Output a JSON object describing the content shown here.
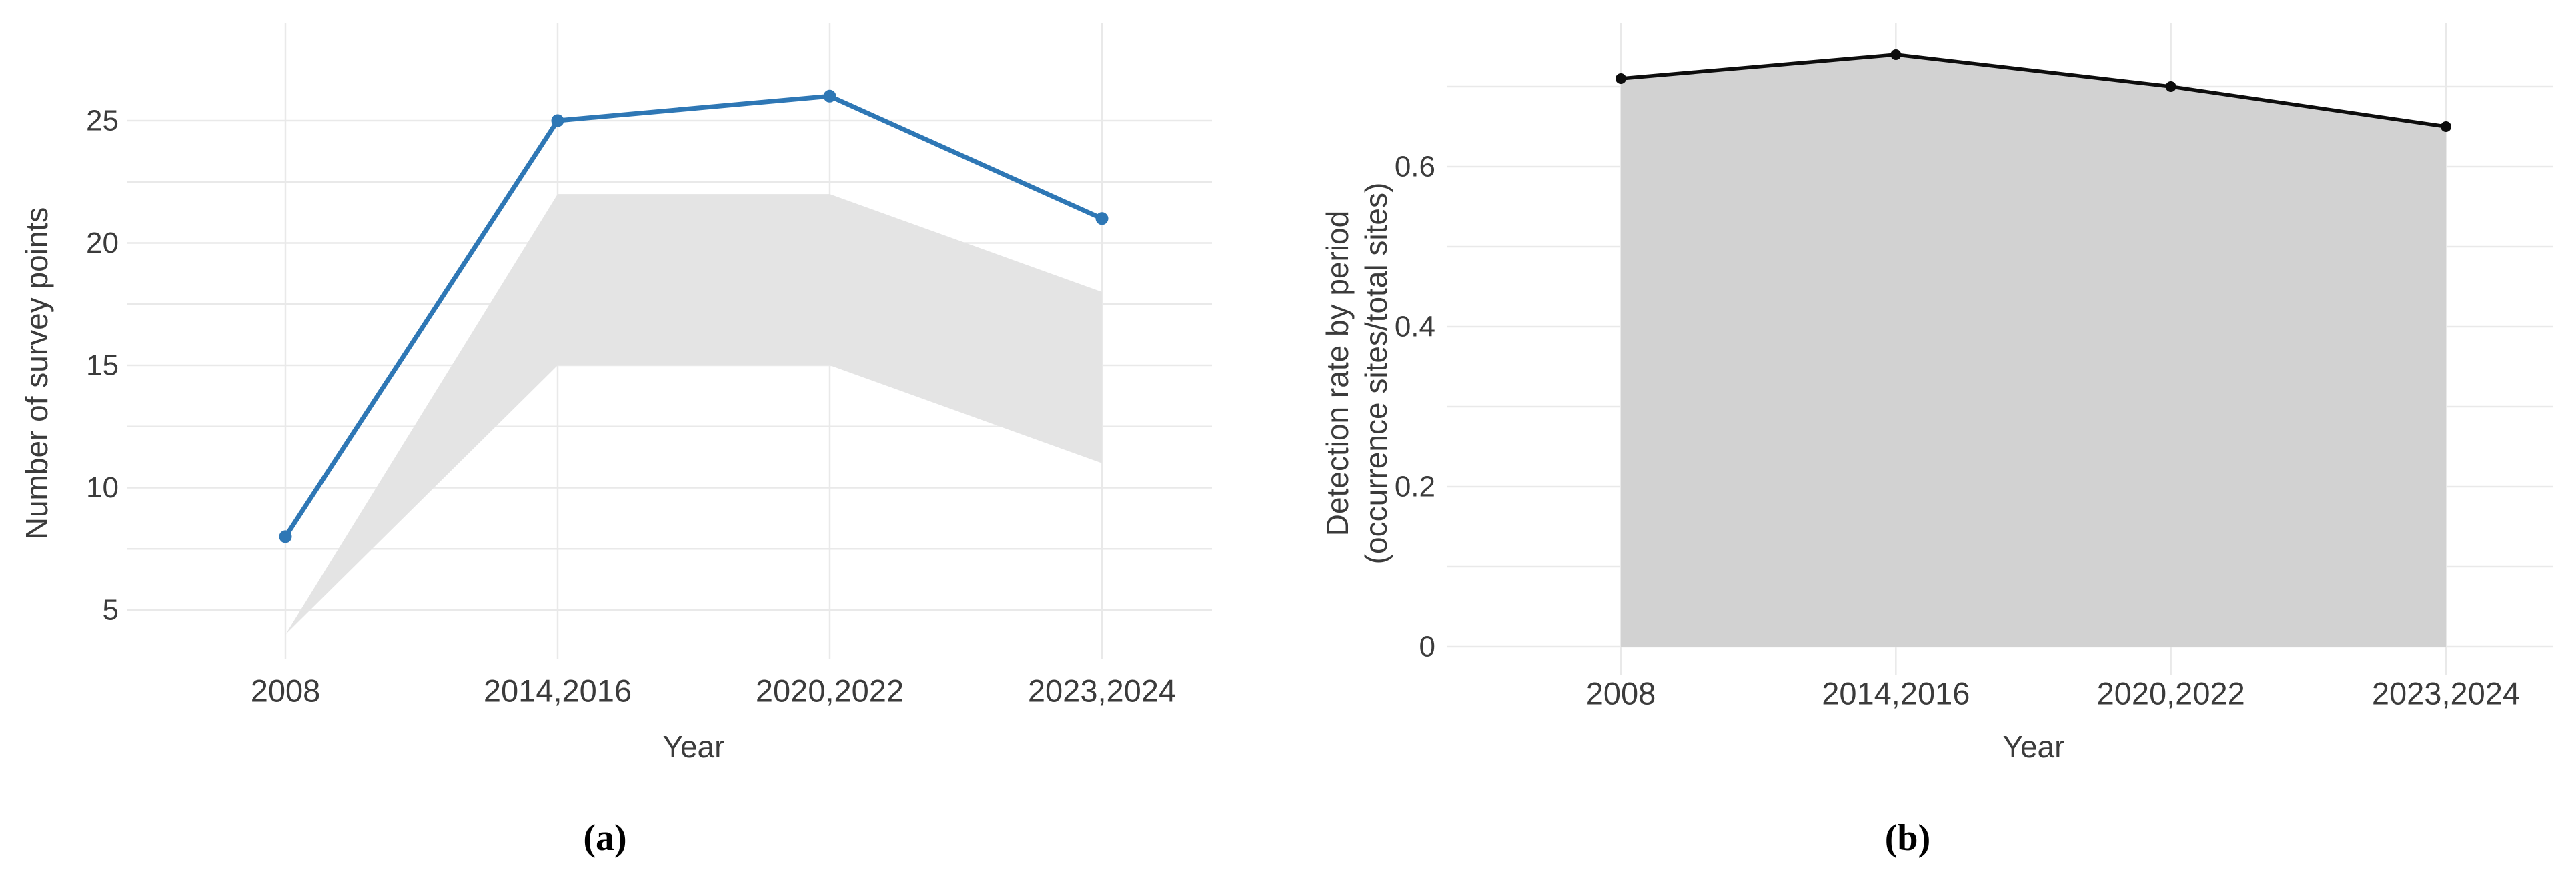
{
  "figure": {
    "caption_a": "(a)",
    "caption_b": "(b)"
  },
  "chart_data": [
    {
      "id": "a",
      "type": "line",
      "panel_label": "(a)",
      "title": "",
      "categories": [
        "2008",
        "2014,2016",
        "2020,2022",
        "2023,2024"
      ],
      "xlabel": "Year",
      "ylabel": "Number of survey points",
      "series": [
        {
          "name": "number of survey points",
          "type": "line_markers",
          "color": "#2e77b5",
          "values": [
            8,
            25,
            26,
            21
          ]
        },
        {
          "name": "range band",
          "type": "band",
          "color": "#e4e4e4",
          "lower": [
            4,
            15,
            15,
            11
          ],
          "upper": [
            4,
            22,
            22,
            18
          ]
        }
      ],
      "ytick_labels": [
        "5",
        "10",
        "15",
        "20",
        "25"
      ],
      "ytick_values": [
        5,
        10,
        15,
        20,
        25
      ],
      "gridline_values": [
        5,
        7.5,
        10,
        12.5,
        15,
        17.5,
        20,
        22.5,
        25
      ],
      "ylim": [
        2.8,
        29
      ],
      "grid": true,
      "legend": "none"
    },
    {
      "id": "b",
      "type": "area",
      "panel_label": "(b)",
      "title": "",
      "categories": [
        "2008",
        "2014,2016",
        "2020,2022",
        "2023,2024"
      ],
      "xlabel": "Year",
      "ylabel_lines": [
        "Detection rate by period",
        "(occurrence sites/total sites)"
      ],
      "series": [
        {
          "name": "detection rate by period",
          "type": "area_line_markers",
          "line_color": "#0d0d0d",
          "fill_color": "#d2d2d2",
          "values": [
            0.71,
            0.74,
            0.7,
            0.65
          ]
        }
      ],
      "ytick_labels": [
        "0",
        "0.2",
        "0.4",
        "0.6"
      ],
      "ytick_values": [
        0,
        0.2,
        0.4,
        0.6
      ],
      "gridline_values": [
        0,
        0.1,
        0.2,
        0.3,
        0.4,
        0.5,
        0.6,
        0.7
      ],
      "ylim": [
        0,
        0.78
      ],
      "grid": true,
      "legend": "none"
    }
  ]
}
